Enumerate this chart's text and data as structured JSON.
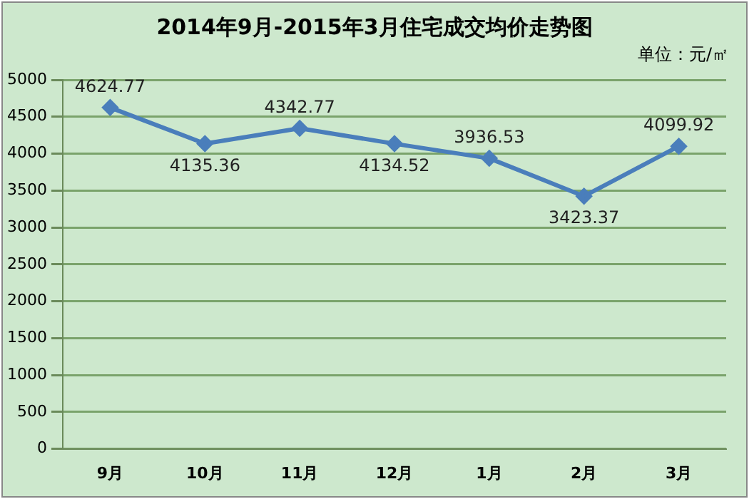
{
  "chart_data": {
    "type": "line",
    "title": "2014年9月-2015年3月住宅成交均价走势图",
    "annotations": [
      "单位：元/㎡"
    ],
    "categories": [
      "9月",
      "10月",
      "11月",
      "12月",
      "1月",
      "2月",
      "3月"
    ],
    "series": [
      {
        "color": "#4a7ebb",
        "values": [
          4624.77,
          4135.36,
          4342.77,
          4134.52,
          3936.53,
          3423.37,
          4099.92
        ]
      }
    ],
    "ylim": [
      0,
      5000
    ],
    "yticks": [
      0,
      500,
      1000,
      1500,
      2000,
      2500,
      3000,
      3500,
      4000,
      4500,
      5000
    ],
    "grid": "y",
    "legend": false,
    "marker": "diamond",
    "line_style": "solid",
    "data_labels": true
  }
}
